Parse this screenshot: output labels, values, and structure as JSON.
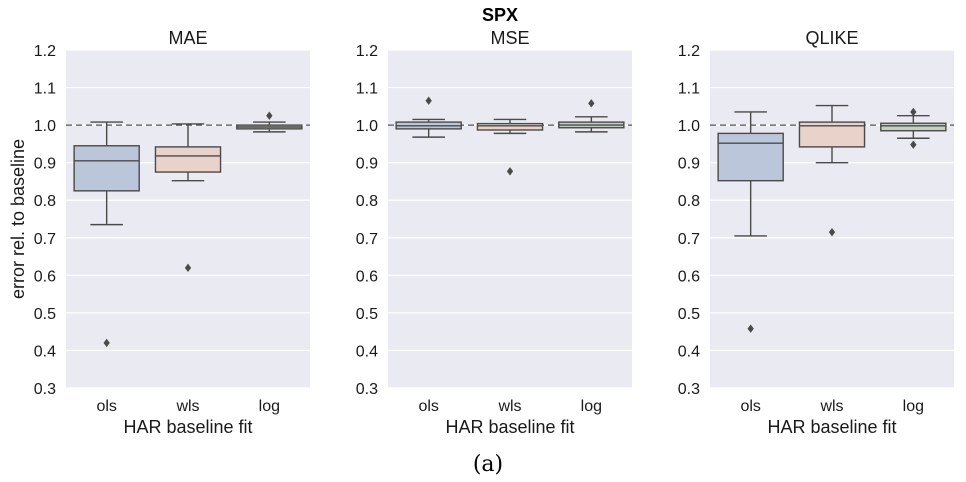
{
  "figure_title": "SPX",
  "caption": "(a)",
  "colors": {
    "background": "#eaeaf2",
    "grid": "#ffffff",
    "line": "#4a4a4a",
    "baseline": "#555555",
    "ols": "#bcc6da",
    "wls": "#e8d2ca",
    "log": "#c3cfc3"
  },
  "chart_data": [
    {
      "type": "box",
      "title": "MAE",
      "xlabel": "HAR baseline fit",
      "ylabel": "error rel. to baseline",
      "ylim": [
        0.3,
        1.2
      ],
      "yticks": [
        "0.3",
        "0.4",
        "0.5",
        "0.6",
        "0.7",
        "0.8",
        "0.9",
        "1.0",
        "1.1",
        "1.2"
      ],
      "grid": true,
      "reference_line": 1.0,
      "categories": [
        "ols",
        "wls",
        "log"
      ],
      "boxes": [
        {
          "q1": 0.825,
          "median": 0.905,
          "q3": 0.945,
          "whisker_low": 0.735,
          "whisker_high": 1.008,
          "outliers": [
            0.42
          ]
        },
        {
          "q1": 0.875,
          "median": 0.918,
          "q3": 0.942,
          "whisker_low": 0.852,
          "whisker_high": 1.003,
          "outliers": [
            0.62
          ]
        },
        {
          "q1": 0.99,
          "median": 0.995,
          "q3": 1.0,
          "whisker_low": 0.982,
          "whisker_high": 1.008,
          "outliers": [
            1.025
          ]
        }
      ]
    },
    {
      "type": "box",
      "title": "MSE",
      "xlabel": "HAR baseline fit",
      "ylabel": "",
      "ylim": [
        0.3,
        1.2
      ],
      "yticks": [
        "0.3",
        "0.4",
        "0.5",
        "0.6",
        "0.7",
        "0.8",
        "0.9",
        "1.0",
        "1.1",
        "1.2"
      ],
      "grid": true,
      "reference_line": 1.0,
      "categories": [
        "ols",
        "wls",
        "log"
      ],
      "boxes": [
        {
          "q1": 0.99,
          "median": 0.998,
          "q3": 1.008,
          "whisker_low": 0.968,
          "whisker_high": 1.015,
          "outliers": [
            1.065
          ]
        },
        {
          "q1": 0.987,
          "median": 0.998,
          "q3": 1.004,
          "whisker_low": 0.978,
          "whisker_high": 1.015,
          "outliers": [
            0.877
          ]
        },
        {
          "q1": 0.993,
          "median": 1.0,
          "q3": 1.008,
          "whisker_low": 0.982,
          "whisker_high": 1.022,
          "outliers": [
            1.058
          ]
        }
      ]
    },
    {
      "type": "box",
      "title": "QLIKE",
      "xlabel": "HAR baseline fit",
      "ylabel": "",
      "ylim": [
        0.3,
        1.2
      ],
      "yticks": [
        "0.3",
        "0.4",
        "0.5",
        "0.6",
        "0.7",
        "0.8",
        "0.9",
        "1.0",
        "1.1",
        "1.2"
      ],
      "grid": true,
      "reference_line": 1.0,
      "categories": [
        "ols",
        "wls",
        "log"
      ],
      "boxes": [
        {
          "q1": 0.852,
          "median": 0.952,
          "q3": 0.978,
          "whisker_low": 0.705,
          "whisker_high": 1.035,
          "outliers": [
            0.458
          ]
        },
        {
          "q1": 0.942,
          "median": 0.998,
          "q3": 1.008,
          "whisker_low": 0.9,
          "whisker_high": 1.052,
          "outliers": [
            0.715
          ]
        },
        {
          "q1": 0.985,
          "median": 0.998,
          "q3": 1.005,
          "whisker_low": 0.965,
          "whisker_high": 1.025,
          "outliers": [
            0.948,
            1.035
          ]
        }
      ]
    }
  ]
}
